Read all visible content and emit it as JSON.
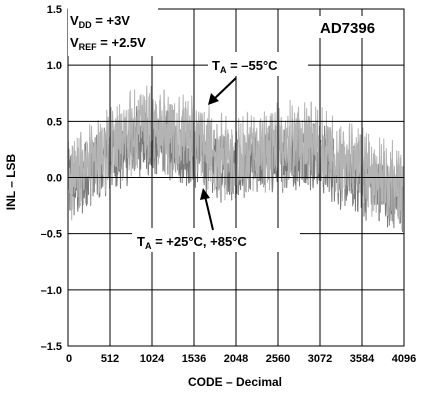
{
  "chart_data": {
    "type": "line",
    "title": "",
    "device": "AD7396",
    "xlabel": "CODE – Decimal",
    "ylabel": "INL – LSB",
    "xlim": [
      0,
      4096
    ],
    "ylim": [
      -1.5,
      1.5
    ],
    "grid": true,
    "xticks": [
      0,
      512,
      1024,
      1536,
      2048,
      2560,
      3072,
      3584,
      4096
    ],
    "yticks": [
      1.5,
      1.0,
      0.5,
      0.0,
      -0.5,
      -1.0,
      -1.5
    ],
    "ytick_labels": [
      "1.5",
      "1.0",
      "0.5",
      "0.0",
      "–0.5",
      "–1.0",
      "–1.5"
    ],
    "conditions": [
      {
        "main": "V",
        "sub": "DD",
        "rest": " = +3V"
      },
      {
        "main": "V",
        "sub": "REF",
        "rest": " = +2.5V"
      }
    ],
    "series": [
      {
        "name": "T_A = +25°C, +85°C",
        "label": {
          "main": "T",
          "sub": "A",
          "rest": " = +25°C, +85°C"
        },
        "color": "#7a7a7a",
        "x": [
          0,
          128,
          256,
          384,
          512,
          640,
          768,
          896,
          1024,
          1152,
          1280,
          1408,
          1536,
          1664,
          1792,
          1920,
          2048,
          2176,
          2304,
          2432,
          2560,
          2688,
          2816,
          2944,
          3072,
          3200,
          3328,
          3456,
          3584,
          3712,
          3840,
          3968,
          4096
        ],
        "values": [
          -0.05,
          -0.08,
          0.05,
          0.1,
          0.2,
          0.18,
          0.28,
          0.3,
          0.32,
          0.28,
          0.3,
          0.22,
          0.25,
          0.18,
          0.15,
          0.08,
          0.05,
          0.1,
          0.12,
          0.15,
          0.18,
          0.2,
          0.22,
          0.2,
          0.18,
          0.12,
          0.05,
          0.0,
          -0.02,
          -0.08,
          -0.1,
          -0.15,
          -0.18
        ],
        "ripple": 0.28
      },
      {
        "name": "T_A = –55°C",
        "label": {
          "main": "T",
          "sub": "A",
          "rest": " = –55°C"
        },
        "color": "#b4b4b4",
        "x": [
          0,
          128,
          256,
          384,
          512,
          640,
          768,
          896,
          1024,
          1152,
          1280,
          1408,
          1536,
          1664,
          1792,
          1920,
          2048,
          2176,
          2304,
          2432,
          2560,
          2688,
          2816,
          2944,
          3072,
          3200,
          3328,
          3456,
          3584,
          3712,
          3840,
          3968,
          4096
        ],
        "values": [
          -0.02,
          0.02,
          0.1,
          0.18,
          0.28,
          0.32,
          0.4,
          0.45,
          0.45,
          0.4,
          0.42,
          0.36,
          0.35,
          0.28,
          0.24,
          0.18,
          0.15,
          0.2,
          0.22,
          0.25,
          0.28,
          0.3,
          0.32,
          0.3,
          0.28,
          0.22,
          0.15,
          0.1,
          0.08,
          0.02,
          -0.02,
          -0.06,
          -0.1
        ],
        "ripple": 0.32
      }
    ]
  }
}
